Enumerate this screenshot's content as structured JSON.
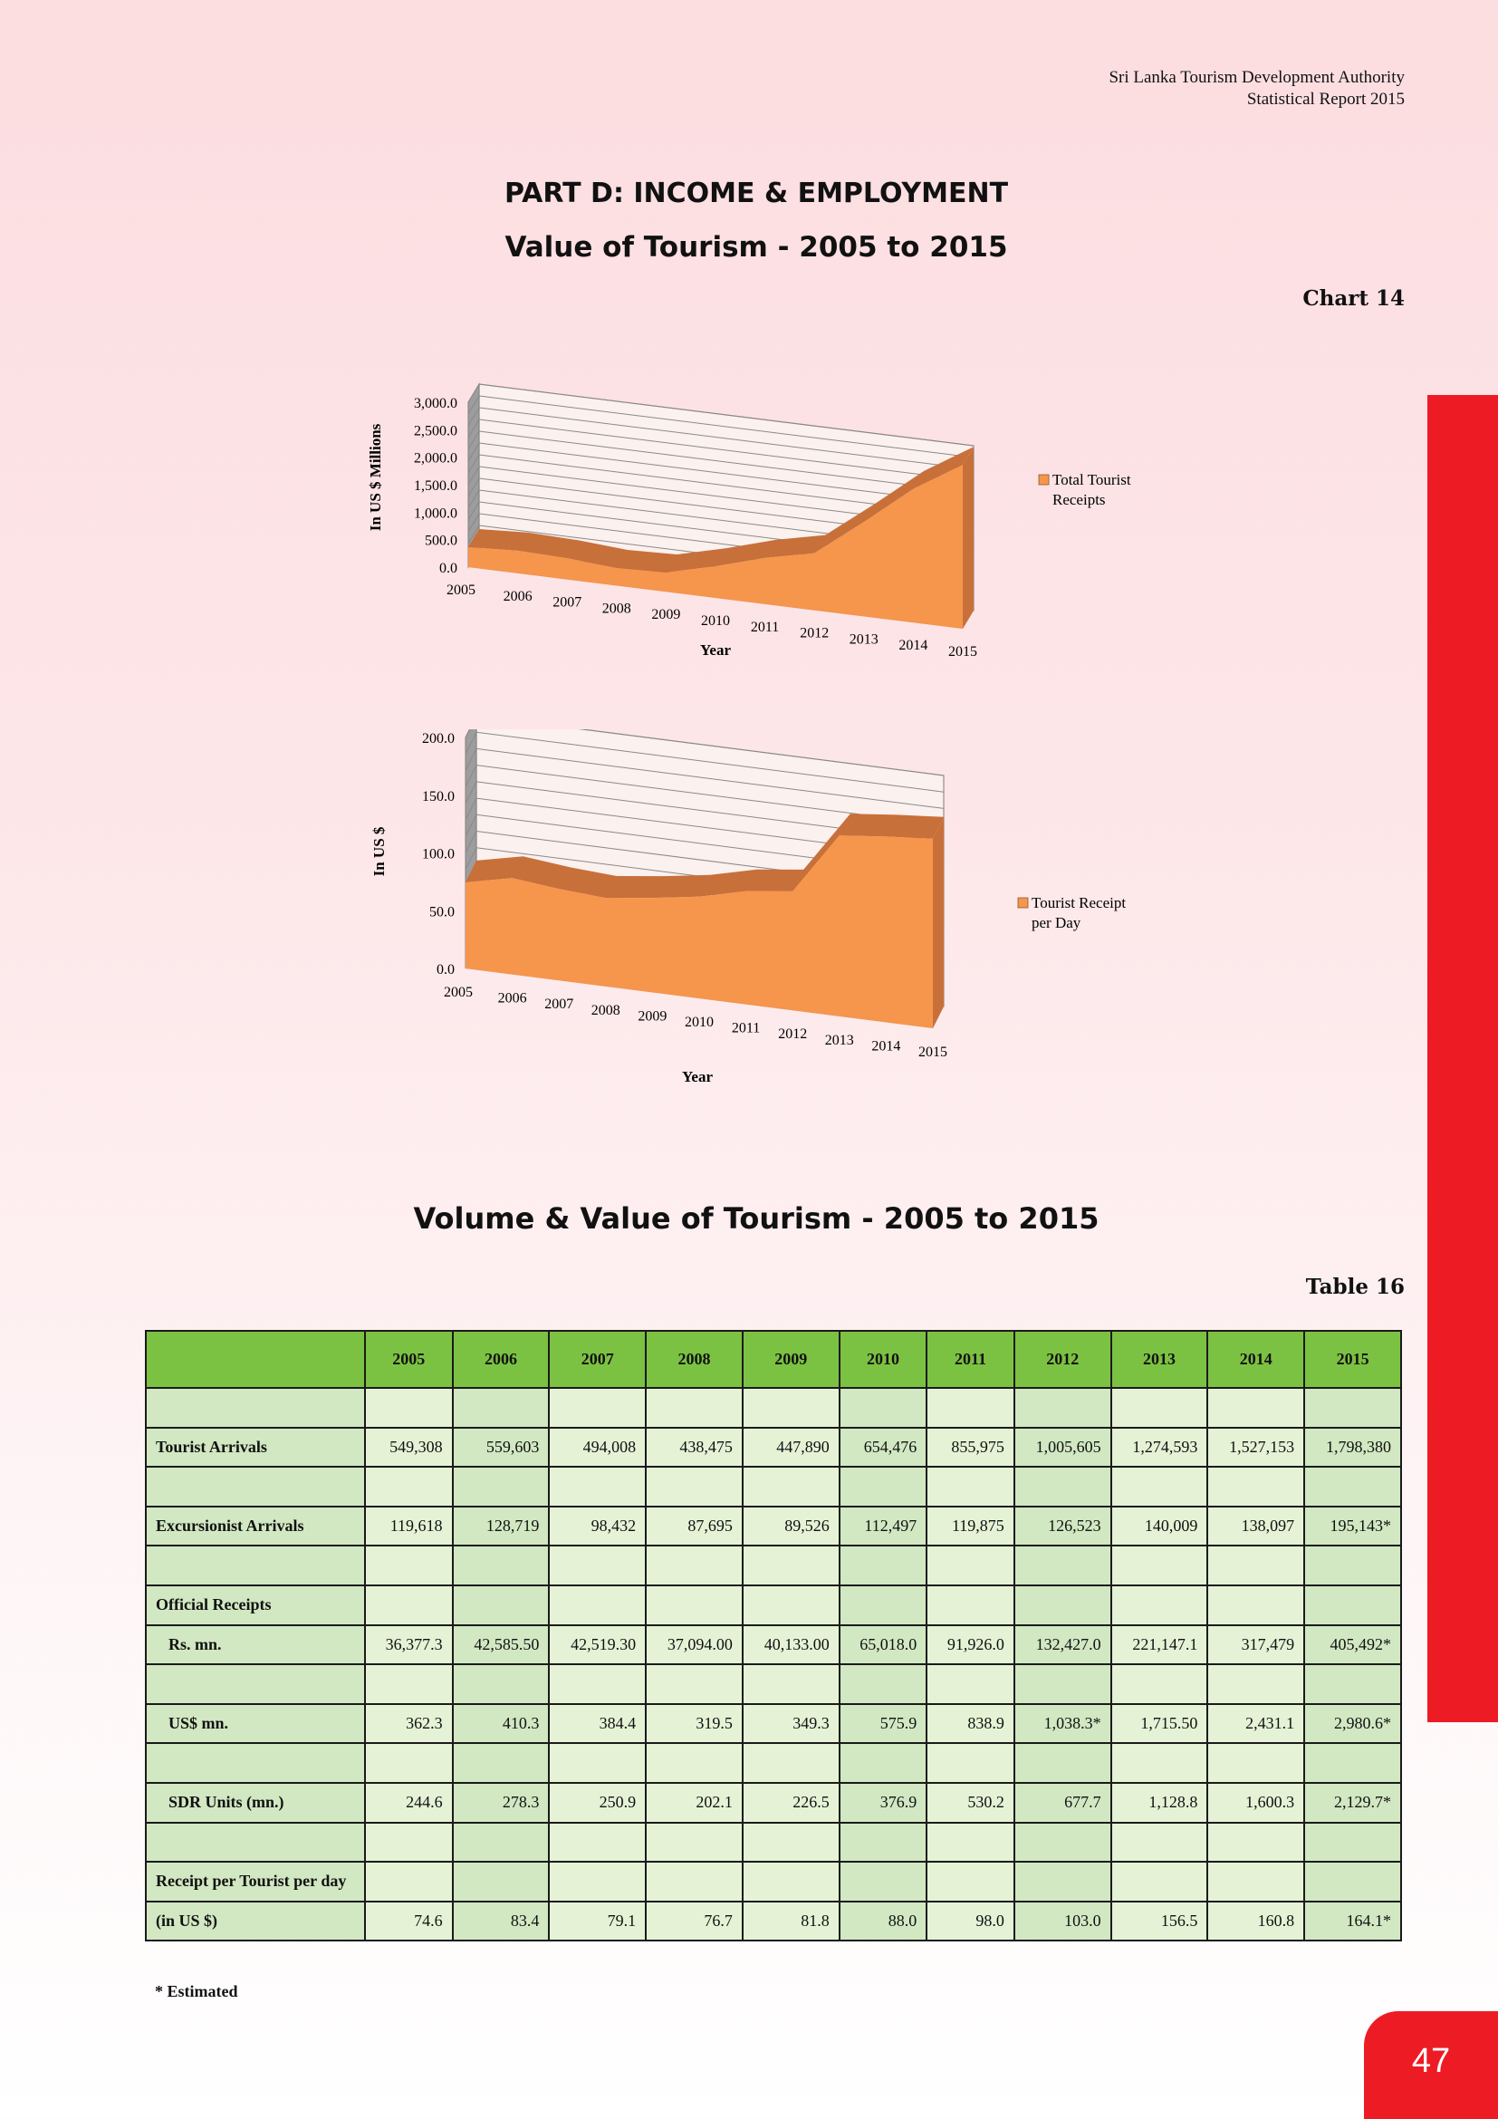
{
  "header": {
    "line1": "Sri Lanka Tourism Development Authority",
    "line2": "Statistical Report 2015"
  },
  "part_title": "PART D: INCOME & EMPLOYMENT",
  "section_title": "Value of Tourism - 2005 to 2015",
  "chart_label": "Chart 14",
  "table_title": "Volume & Value of Tourism - 2005 to 2015",
  "table_label": "Table 16",
  "footnote": "* Estimated",
  "page_number": "47",
  "colors": {
    "area": "#f6954c",
    "area_edge": "#c8703a",
    "header_green": "#7cc242",
    "cell_light": "#e5f2d6",
    "cell_mid": "#d1e8c2",
    "accent_red": "#ed1c24"
  },
  "chart_data": [
    {
      "type": "area",
      "x": [
        "2005",
        "2006",
        "2007",
        "2008",
        "2009",
        "2010",
        "2011",
        "2012",
        "2013",
        "2014",
        "2015"
      ],
      "series": [
        {
          "name": "Total Tourist Receipts",
          "values": [
            362.3,
            410.3,
            384.4,
            319.5,
            349.3,
            575.9,
            838.9,
            1038.3,
            1715.5,
            2431.1,
            2980.6
          ]
        }
      ],
      "xlabel": "Year",
      "ylabel": "In US $ Millions",
      "yticks": [
        "0.0",
        "500.0",
        "1,000.0",
        "1,500.0",
        "2,000.0",
        "2,500.0",
        "3,000.0"
      ],
      "ylim": [
        0,
        3000
      ],
      "grid": true,
      "legend": "right",
      "style": "3d"
    },
    {
      "type": "area",
      "x": [
        "2005",
        "2006",
        "2007",
        "2008",
        "2009",
        "2010",
        "2011",
        "2012",
        "2013",
        "2014",
        "2015"
      ],
      "series": [
        {
          "name": "Tourist Receipt per Day",
          "values": [
            74.6,
            83.4,
            79.1,
            76.7,
            81.8,
            88.0,
            98.0,
            103.0,
            156.5,
            160.8,
            164.1
          ]
        }
      ],
      "xlabel": "Year",
      "ylabel": "In US $",
      "yticks": [
        "0.0",
        "50.0",
        "100.0",
        "150.0",
        "200.0"
      ],
      "ylim": [
        0,
        200
      ],
      "grid": true,
      "legend": "right",
      "style": "3d"
    }
  ],
  "table": {
    "years": [
      "2005",
      "2006",
      "2007",
      "2008",
      "2009",
      "2010",
      "2011",
      "2012",
      "2013",
      "2014",
      "2015"
    ],
    "rows": [
      {
        "label": "",
        "values": [
          "",
          "",
          "",
          "",
          "",
          "",
          "",
          "",
          "",
          "",
          ""
        ]
      },
      {
        "label": "Tourist Arrivals",
        "values": [
          "549,308",
          "559,603",
          "494,008",
          "438,475",
          "447,890",
          "654,476",
          "855,975",
          "1,005,605",
          "1,274,593",
          "1,527,153",
          "1,798,380"
        ]
      },
      {
        "label": "",
        "values": [
          "",
          "",
          "",
          "",
          "",
          "",
          "",
          "",
          "",
          "",
          ""
        ]
      },
      {
        "label": "Excursionist Arrivals",
        "values": [
          "119,618",
          "128,719",
          "98,432",
          "87,695",
          "89,526",
          "112,497",
          "119,875",
          "126,523",
          "140,009",
          "138,097",
          "195,143*"
        ]
      },
      {
        "label": "",
        "values": [
          "",
          "",
          "",
          "",
          "",
          "",
          "",
          "",
          "",
          "",
          ""
        ]
      },
      {
        "label": "Official Receipts",
        "values": [
          "",
          "",
          "",
          "",
          "",
          "",
          "",
          "",
          "",
          "",
          ""
        ]
      },
      {
        "label": "Rs. mn.",
        "indent": true,
        "values": [
          "36,377.3",
          "42,585.50",
          "42,519.30",
          "37,094.00",
          "40,133.00",
          "65,018.0",
          "91,926.0",
          "132,427.0",
          "221,147.1",
          "317,479",
          "405,492*"
        ]
      },
      {
        "label": "",
        "values": [
          "",
          "",
          "",
          "",
          "",
          "",
          "",
          "",
          "",
          "",
          ""
        ]
      },
      {
        "label": "US$ mn.",
        "indent": true,
        "values": [
          "362.3",
          "410.3",
          "384.4",
          "319.5",
          "349.3",
          "575.9",
          "838.9",
          "1,038.3*",
          "1,715.50",
          "2,431.1",
          "2,980.6*"
        ]
      },
      {
        "label": "",
        "values": [
          "",
          "",
          "",
          "",
          "",
          "",
          "",
          "",
          "",
          "",
          ""
        ]
      },
      {
        "label": "SDR Units (mn.)",
        "indent": true,
        "values": [
          "244.6",
          "278.3",
          "250.9",
          "202.1",
          "226.5",
          "376.9",
          "530.2",
          "677.7",
          "1,128.8",
          "1,600.3",
          "2,129.7*"
        ]
      },
      {
        "label": "",
        "values": [
          "",
          "",
          "",
          "",
          "",
          "",
          "",
          "",
          "",
          "",
          ""
        ]
      },
      {
        "label": "Receipt per Tourist per day",
        "values": [
          "",
          "",
          "",
          "",
          "",
          "",
          "",
          "",
          "",
          "",
          ""
        ]
      },
      {
        "label": "(in US $)",
        "values": [
          "74.6",
          "83.4",
          "79.1",
          "76.7",
          "81.8",
          "88.0",
          "98.0",
          "103.0",
          "156.5",
          "160.8",
          "164.1*"
        ]
      }
    ]
  }
}
